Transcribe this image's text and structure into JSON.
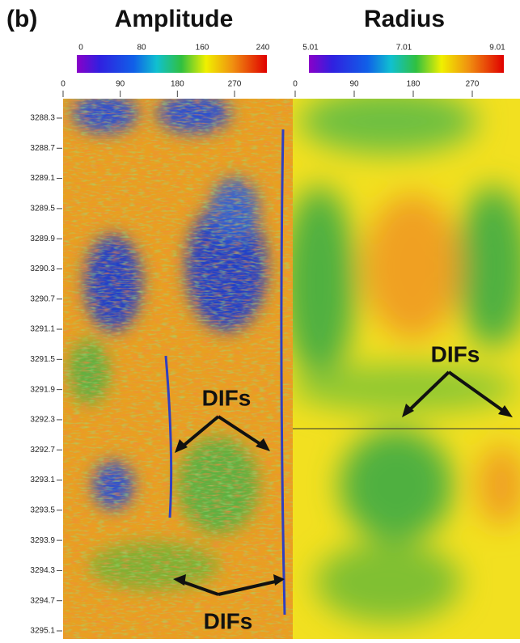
{
  "figure_label": "(b)",
  "panels": [
    {
      "title": "Amplitude",
      "colorbar_ticks": [
        "0",
        "80",
        "160",
        "240"
      ],
      "azimuth_ticks": [
        "0",
        "90",
        "180",
        "270"
      ]
    },
    {
      "title": "Radius",
      "colorbar_ticks": [
        "5.01",
        "7.01",
        "9.01"
      ],
      "azimuth_ticks": [
        "0",
        "90",
        "180",
        "270"
      ]
    }
  ],
  "depth_ticks": [
    "3288.3",
    "3288.7",
    "3289.1",
    "3289.5",
    "3289.9",
    "3290.3",
    "3290.7",
    "3291.1",
    "3291.5",
    "3291.9",
    "3292.3",
    "3292.7",
    "3293.1",
    "3293.5",
    "3293.9",
    "3294.3",
    "3294.7",
    "3295.1"
  ],
  "annotations": [
    "DIFs",
    "DIFs",
    "DIFs"
  ]
}
